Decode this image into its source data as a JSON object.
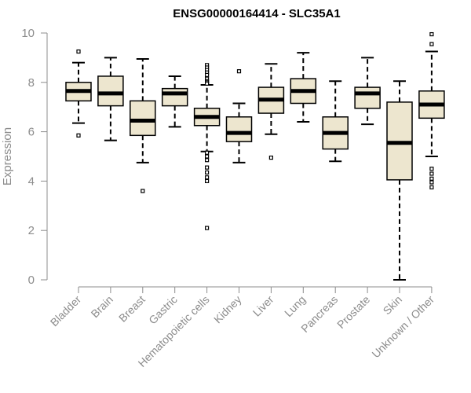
{
  "chart_data": {
    "type": "boxplot",
    "title": "ENSG00000164414 - SLC35A1",
    "xlabel": "",
    "ylabel": "Expression",
    "ylim": [
      0,
      10
    ],
    "yticks": [
      0,
      2,
      4,
      6,
      8,
      10
    ],
    "grid": false,
    "colors": {
      "box_fill": "#ede6cf",
      "box_stroke": "#000000",
      "axis": "#8c8c8c",
      "text": "#8c8c8c"
    },
    "categories": [
      "Bladder",
      "Brain",
      "Breast",
      "Gastric",
      "Hematopoietic cells",
      "Kidney",
      "Liver",
      "Lung",
      "Pancreas",
      "Prostate",
      "Skin",
      "Unknown / Other"
    ],
    "boxes": [
      {
        "category": "Bladder",
        "whisker_low": 6.35,
        "q1": 7.25,
        "median": 7.65,
        "q3": 8.0,
        "whisker_high": 8.8,
        "outliers": [
          9.25,
          5.85
        ]
      },
      {
        "category": "Brain",
        "whisker_low": 5.65,
        "q1": 7.05,
        "median": 7.55,
        "q3": 8.25,
        "whisker_high": 9.0,
        "outliers": []
      },
      {
        "category": "Breast",
        "whisker_low": 4.75,
        "q1": 5.85,
        "median": 6.45,
        "q3": 7.25,
        "whisker_high": 8.95,
        "outliers": [
          3.6
        ]
      },
      {
        "category": "Gastric",
        "whisker_low": 6.2,
        "q1": 7.05,
        "median": 7.55,
        "q3": 7.75,
        "whisker_high": 8.25,
        "outliers": []
      },
      {
        "category": "Hematopoietic cells",
        "whisker_low": 5.2,
        "q1": 6.25,
        "median": 6.6,
        "q3": 6.95,
        "whisker_high": 7.9,
        "outliers": [
          8.7,
          8.6,
          8.5,
          8.4,
          8.3,
          8.15,
          8.05,
          8.0,
          7.95,
          5.15,
          5.0,
          4.85,
          4.55,
          4.35,
          4.15,
          4.0,
          2.1
        ]
      },
      {
        "category": "Kidney",
        "whisker_low": 4.75,
        "q1": 5.6,
        "median": 5.95,
        "q3": 6.6,
        "whisker_high": 7.15,
        "outliers": [
          8.45
        ]
      },
      {
        "category": "Liver",
        "whisker_low": 5.9,
        "q1": 6.75,
        "median": 7.3,
        "q3": 7.8,
        "whisker_high": 8.75,
        "outliers": [
          4.95
        ]
      },
      {
        "category": "Lung",
        "whisker_low": 6.4,
        "q1": 7.15,
        "median": 7.65,
        "q3": 8.15,
        "whisker_high": 9.2,
        "outliers": []
      },
      {
        "category": "Pancreas",
        "whisker_low": 4.8,
        "q1": 5.3,
        "median": 5.95,
        "q3": 6.6,
        "whisker_high": 8.05,
        "outliers": []
      },
      {
        "category": "Prostate",
        "whisker_low": 6.3,
        "q1": 6.95,
        "median": 7.55,
        "q3": 7.8,
        "whisker_high": 9.0,
        "outliers": []
      },
      {
        "category": "Skin",
        "whisker_low": 0.0,
        "q1": 4.05,
        "median": 5.55,
        "q3": 7.2,
        "whisker_high": 8.05,
        "outliers": []
      },
      {
        "category": "Unknown / Other",
        "whisker_low": 5.0,
        "q1": 6.55,
        "median": 7.1,
        "q3": 7.65,
        "whisker_high": 9.25,
        "outliers": [
          9.95,
          9.55,
          4.5,
          4.3,
          4.1,
          3.95,
          3.75
        ]
      }
    ]
  }
}
